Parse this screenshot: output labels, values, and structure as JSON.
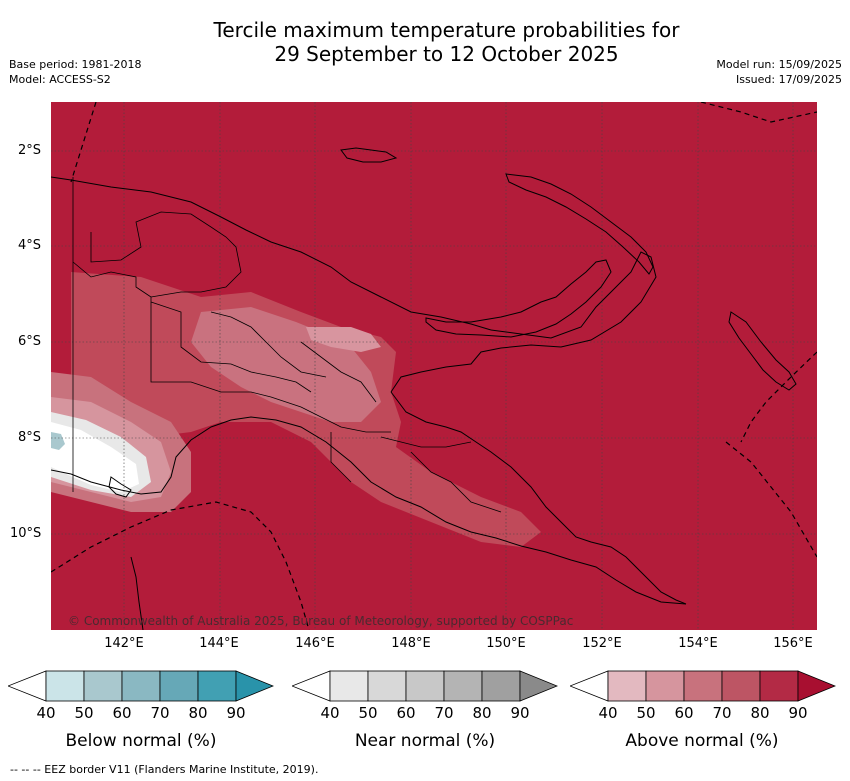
{
  "header": {
    "title_line1": "Tercile maximum temperature probabilities for",
    "title_line2": "29 September to 12 October 2025",
    "base_period": "Base period: 1981-2018",
    "model": "Model: ACCESS-S2",
    "model_run": "Model run: 15/09/2025",
    "issued": "Issued: 17/09/2025"
  },
  "map": {
    "y_ticks": [
      "2°S",
      "4°S",
      "6°S",
      "8°S",
      "10°S"
    ],
    "x_ticks": [
      "142°E",
      "144°E",
      "146°E",
      "148°E",
      "150°E",
      "152°E",
      "154°E",
      "156°E"
    ],
    "copyright": "© Commonwealth of Australia 2025, Bureau of Meteorology, supported by COSPPac",
    "background_color": "#b31c3a"
  },
  "colorbars": [
    {
      "label": "Below normal (%)",
      "ticks": [
        "40",
        "50",
        "60",
        "70",
        "80",
        "90"
      ],
      "colors": [
        "#ffffff",
        "#cbe4e8",
        "#a9c8ce",
        "#8ab8c2",
        "#66a8b7",
        "#41a0b3",
        "#2993aa"
      ]
    },
    {
      "label": "Near normal (%)",
      "ticks": [
        "40",
        "50",
        "60",
        "70",
        "80",
        "90"
      ],
      "colors": [
        "#ffffff",
        "#e8e8e8",
        "#d8d8d8",
        "#c8c8c8",
        "#b4b4b4",
        "#a0a0a0",
        "#8a8a8a"
      ]
    },
    {
      "label": "Above normal (%)",
      "ticks": [
        "40",
        "50",
        "60",
        "70",
        "80",
        "90"
      ],
      "colors": [
        "#ffffff",
        "#e3b9c0",
        "#d6959e",
        "#c8727d",
        "#bd5564",
        "#b32a45",
        "#a80f30"
      ]
    }
  ],
  "footer": "--  --  -- EEZ border V11 (Flanders Marine Institute, 2019)."
}
